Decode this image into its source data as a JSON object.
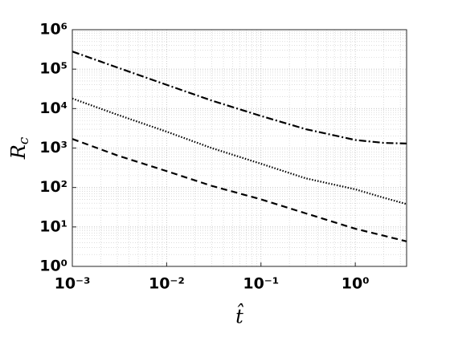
{
  "chart_data": {
    "type": "line",
    "x_label": "t̂",
    "y_label": "Rc",
    "xscale": "log",
    "yscale": "log",
    "grid": true,
    "minor_grid": true,
    "xlim": [
      0.001,
      3.5
    ],
    "ylim": [
      1,
      1000000
    ],
    "xticks": [
      {
        "value": 0.001,
        "label": "10⁻³"
      },
      {
        "value": 0.01,
        "label": "10⁻²"
      },
      {
        "value": 0.1,
        "label": "10⁻¹"
      },
      {
        "value": 1,
        "label": "10⁰"
      }
    ],
    "yticks": [
      {
        "value": 1,
        "label": "10⁰"
      },
      {
        "value": 10,
        "label": "10¹"
      },
      {
        "value": 100,
        "label": "10²"
      },
      {
        "value": 1000,
        "label": "10³"
      },
      {
        "value": 10000,
        "label": "10⁴"
      },
      {
        "value": 100000,
        "label": "10⁵"
      },
      {
        "value": 1000000,
        "label": "10⁶"
      }
    ],
    "x": [
      0.001,
      0.003,
      0.01,
      0.03,
      0.1,
      0.3,
      1,
      2,
      3.5
    ],
    "series": [
      {
        "color": "#000000",
        "dash": "dashdot",
        "values": [
          280000,
          110000,
          40000,
          16000,
          6500,
          3000,
          1600,
          1350,
          1300
        ]
      },
      {
        "color": "#000000",
        "dash": "dotted",
        "values": [
          18000,
          7000,
          2600,
          1000,
          400,
          170,
          90,
          55,
          38
        ]
      },
      {
        "color": "#000000",
        "dash": "dashed",
        "values": [
          1700,
          650,
          260,
          110,
          50,
          22,
          9,
          6,
          4.3
        ]
      }
    ]
  }
}
